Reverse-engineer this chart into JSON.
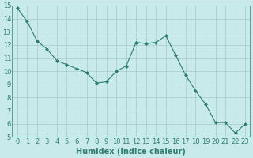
{
  "x": [
    0,
    1,
    2,
    3,
    4,
    5,
    6,
    7,
    8,
    9,
    10,
    11,
    12,
    13,
    14,
    15,
    16,
    17,
    18,
    19,
    20,
    21,
    22,
    23
  ],
  "y": [
    14.8,
    13.8,
    12.3,
    11.7,
    10.8,
    10.5,
    10.2,
    9.9,
    9.1,
    9.2,
    10.0,
    10.4,
    12.2,
    12.1,
    12.2,
    12.7,
    11.2,
    9.7,
    8.5,
    7.5,
    6.1,
    6.1,
    5.3,
    6.0
  ],
  "xlabel": "Humidex (Indice chaleur)",
  "ylim": [
    5,
    15
  ],
  "xlim_min": -0.5,
  "xlim_max": 23.5,
  "yticks": [
    5,
    6,
    7,
    8,
    9,
    10,
    11,
    12,
    13,
    14,
    15
  ],
  "xticks": [
    0,
    1,
    2,
    3,
    4,
    5,
    6,
    7,
    8,
    9,
    10,
    11,
    12,
    13,
    14,
    15,
    16,
    17,
    18,
    19,
    20,
    21,
    22,
    23
  ],
  "xtick_labels": [
    "0",
    "1",
    "2",
    "3",
    "4",
    "5",
    "6",
    "7",
    "8",
    "9",
    "10",
    "11",
    "12",
    "13",
    "14",
    "15",
    "16",
    "17",
    "18",
    "19",
    "20",
    "21",
    "22",
    "23"
  ],
  "line_color": "#2e7d6e",
  "marker_color": "#2e7d6e",
  "bg_color": "#c8eaea",
  "grid_color": "#a8c8c8",
  "xlabel_color": "#2e7d6e",
  "tick_color": "#2e7d6e",
  "xlabel_fontsize": 7,
  "tick_fontsize": 6,
  "marker_size": 2.0,
  "line_width": 0.8
}
